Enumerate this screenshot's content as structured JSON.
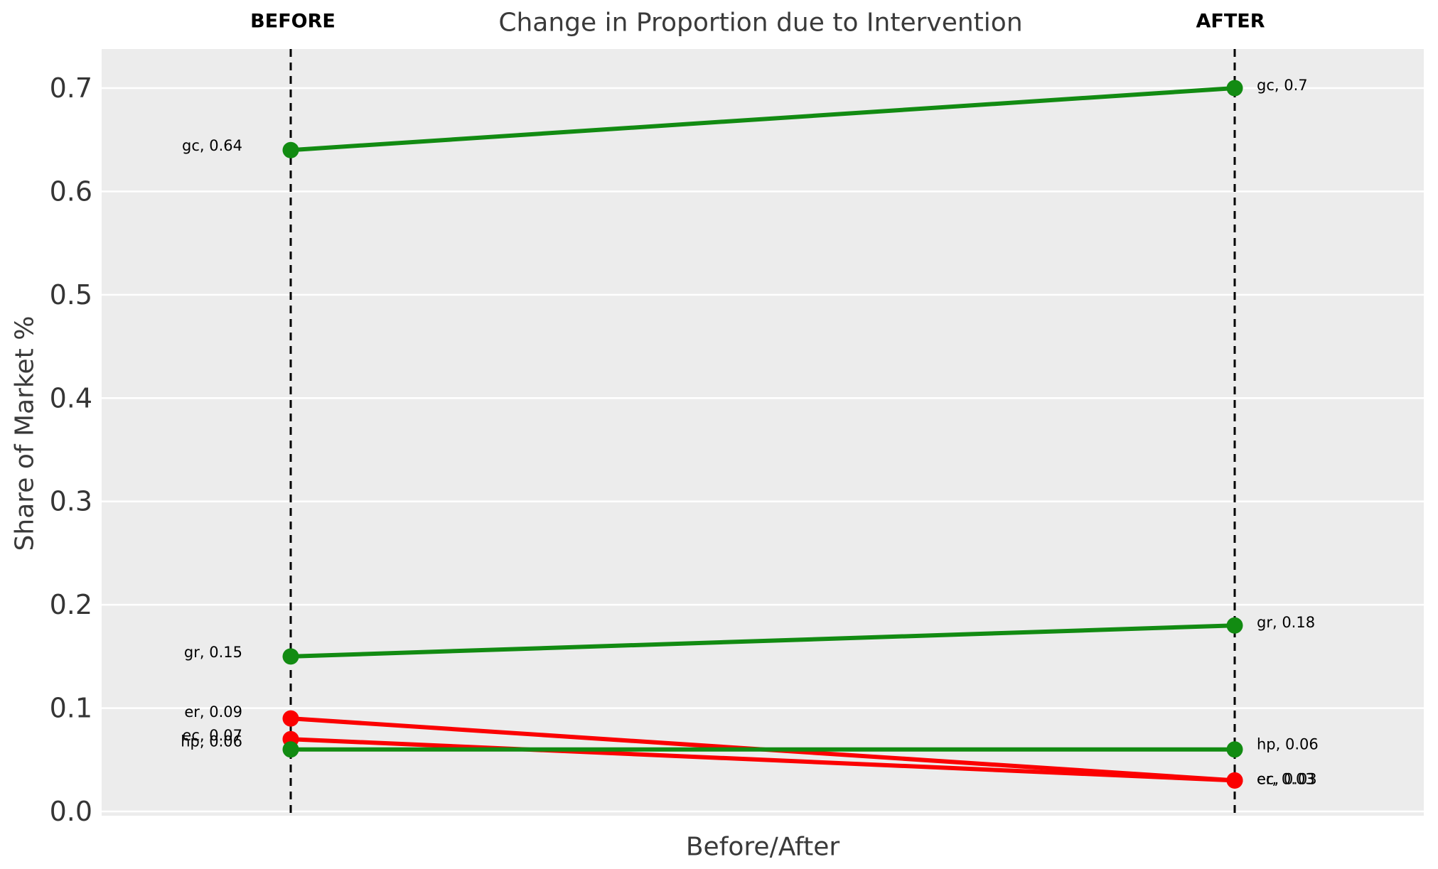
{
  "chart_data": {
    "type": "line",
    "variant": "slopegraph",
    "title": "Change in Proportion due to Intervention",
    "xlabel": "Before/After",
    "ylabel": "Share of Market %",
    "x_categories": [
      "BEFORE",
      "AFTER"
    ],
    "yticks": [
      0.0,
      0.1,
      0.2,
      0.3,
      0.4,
      0.5,
      0.6,
      0.7
    ],
    "ylim": [
      0.0,
      0.74
    ],
    "grid": true,
    "plot_background": "#ECECEC",
    "gridline_color": "#FFFFFF",
    "guide_lines": {
      "style": "dashed",
      "color": "#000000"
    },
    "colors": {
      "increase_or_flat": "#128B12",
      "decrease": "#FB0000"
    },
    "series": [
      {
        "name": "gc",
        "color": "#128B12",
        "values": [
          0.64,
          0.7
        ],
        "labels": [
          "gc, 0.64",
          "gc, 0.7"
        ]
      },
      {
        "name": "gr",
        "color": "#128B12",
        "values": [
          0.15,
          0.18
        ],
        "labels": [
          "gr, 0.15",
          "gr, 0.18"
        ]
      },
      {
        "name": "er",
        "color": "#FB0000",
        "values": [
          0.09,
          0.03
        ],
        "labels": [
          "er, 0.09",
          "er, 0.03"
        ]
      },
      {
        "name": "ec",
        "color": "#FB0000",
        "values": [
          0.07,
          0.03
        ],
        "labels": [
          "ec, 0.07",
          "ec, 0.03"
        ]
      },
      {
        "name": "hp",
        "color": "#128B12",
        "values": [
          0.06,
          0.06
        ],
        "labels": [
          "hp, 0.06",
          "hp, 0.06"
        ]
      }
    ],
    "label_offsets": {
      "gc": [
        -6,
        -4
      ],
      "gr": [
        -6,
        -4
      ],
      "er": [
        -9,
        -2
      ],
      "ec": [
        -5,
        -2
      ],
      "hp": [
        -11,
        -7
      ]
    }
  }
}
